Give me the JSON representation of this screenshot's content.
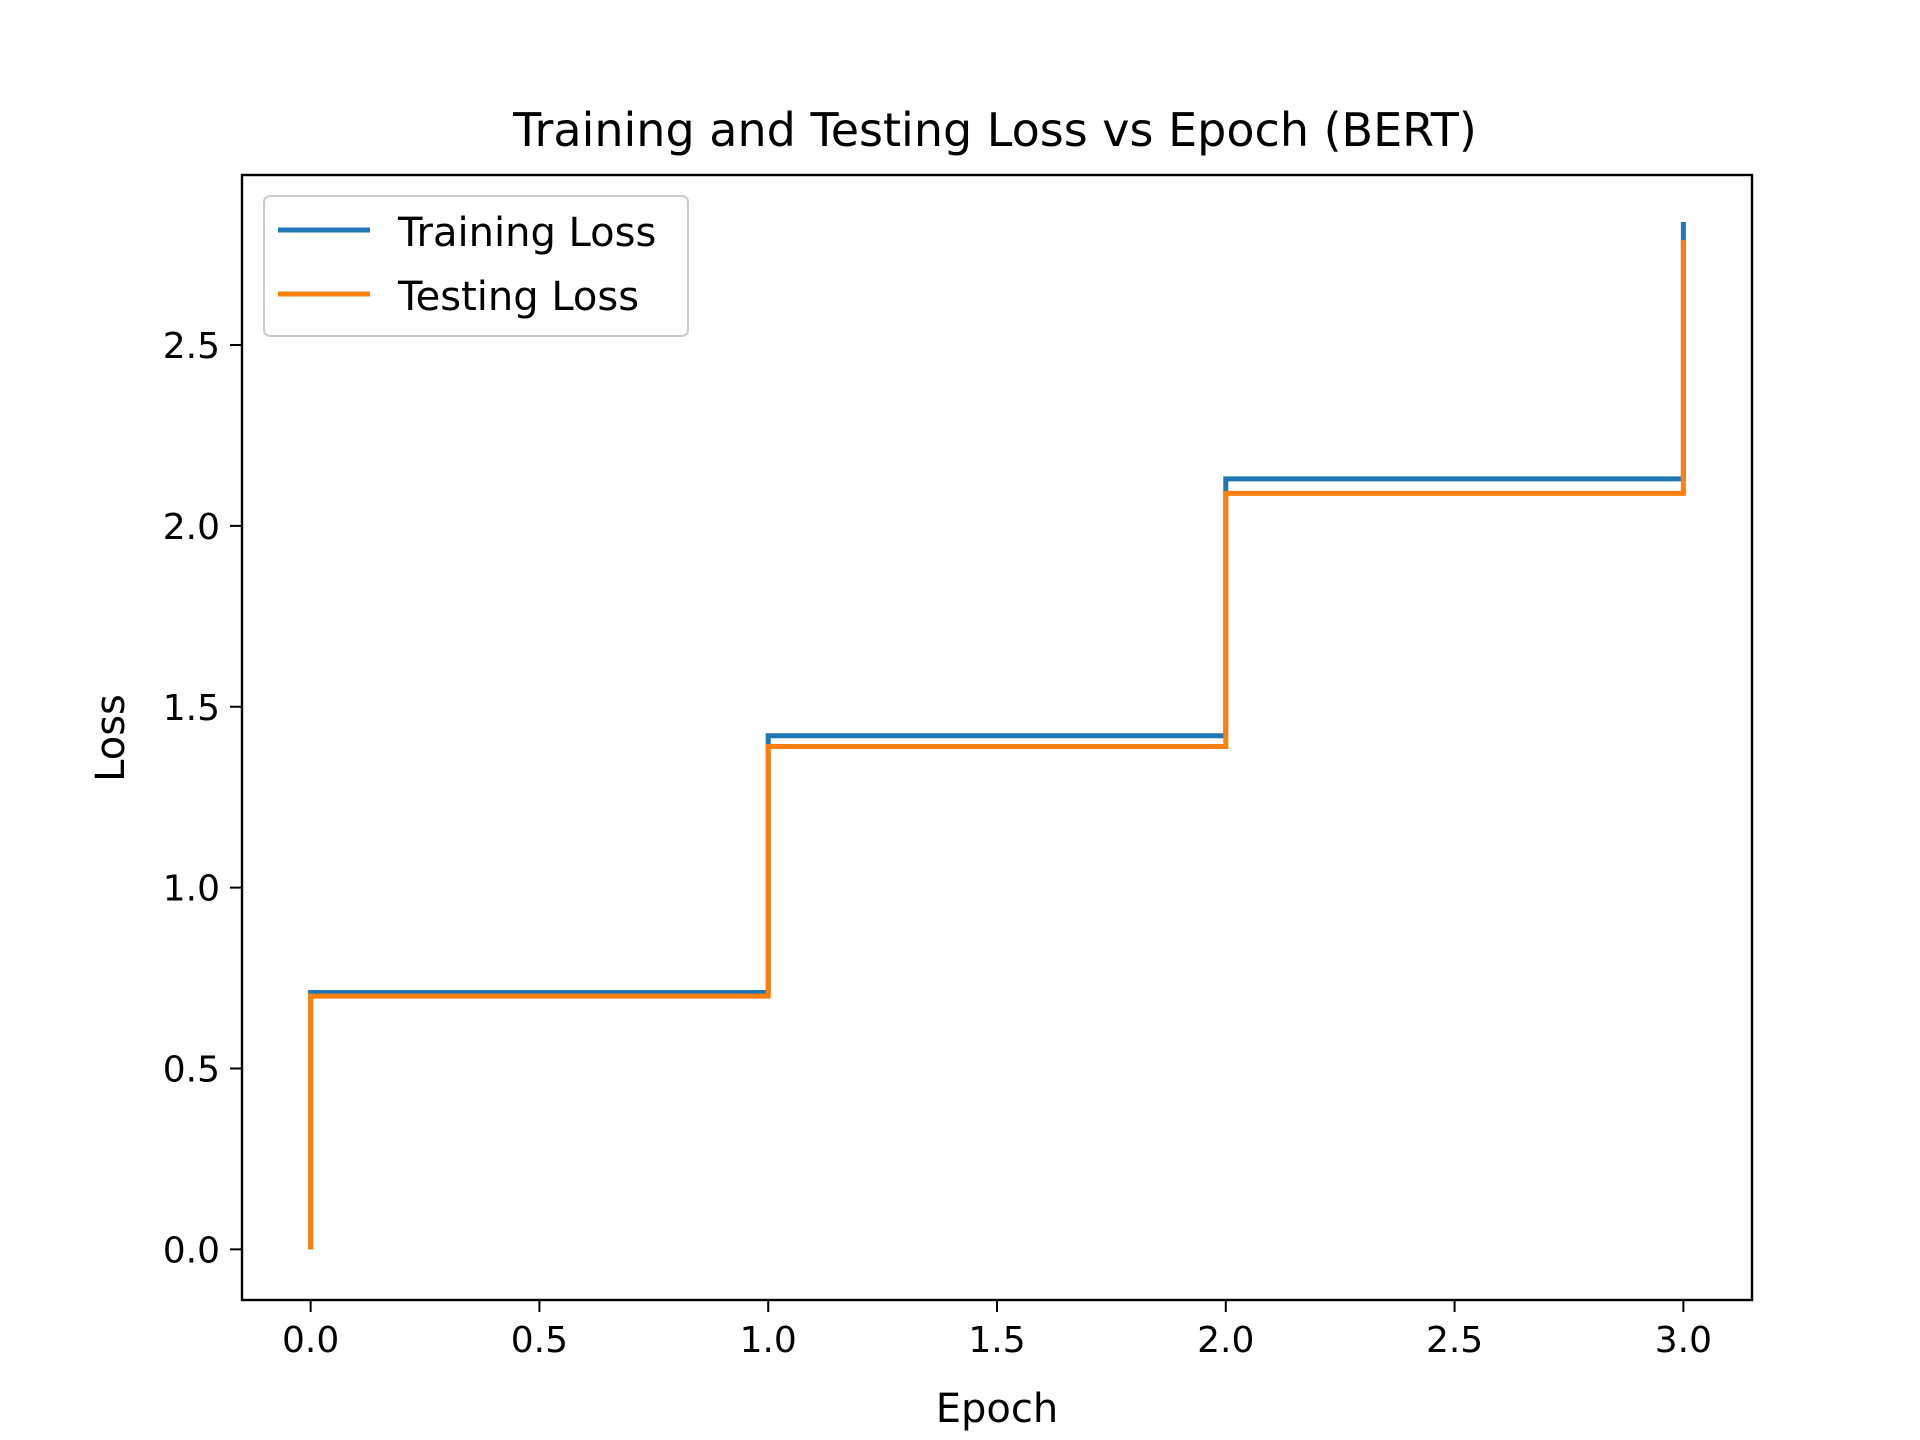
{
  "chart_data": {
    "type": "line",
    "title": "Training and Testing Loss vs Epoch (BERT)",
    "xlabel": "Epoch",
    "ylabel": "Loss",
    "xlim": [
      -0.15,
      3.15
    ],
    "ylim": [
      -0.14,
      2.97
    ],
    "x_ticks": [
      0.0,
      0.5,
      1.0,
      1.5,
      2.0,
      2.5,
      3.0
    ],
    "x_tick_labels": [
      "0.0",
      "0.5",
      "1.0",
      "1.5",
      "2.0",
      "2.5",
      "3.0"
    ],
    "y_ticks": [
      0.0,
      0.5,
      1.0,
      1.5,
      2.0,
      2.5
    ],
    "y_tick_labels": [
      "0.0",
      "0.5",
      "1.0",
      "1.5",
      "2.0",
      "2.5"
    ],
    "grid": false,
    "legend_position": "top-left",
    "step_style": "post",
    "series": [
      {
        "name": "Training Loss",
        "color": "#1f77b4",
        "x": [
          0,
          0,
          1,
          2,
          3,
          3
        ],
        "y": [
          0,
          0.71,
          1.42,
          2.13,
          2.13,
          2.84
        ]
      },
      {
        "name": "Testing Loss",
        "color": "#ff7f0e",
        "x": [
          0,
          0,
          1,
          2,
          3,
          3
        ],
        "y": [
          0,
          0.7,
          1.39,
          2.09,
          2.09,
          2.79
        ]
      }
    ]
  }
}
